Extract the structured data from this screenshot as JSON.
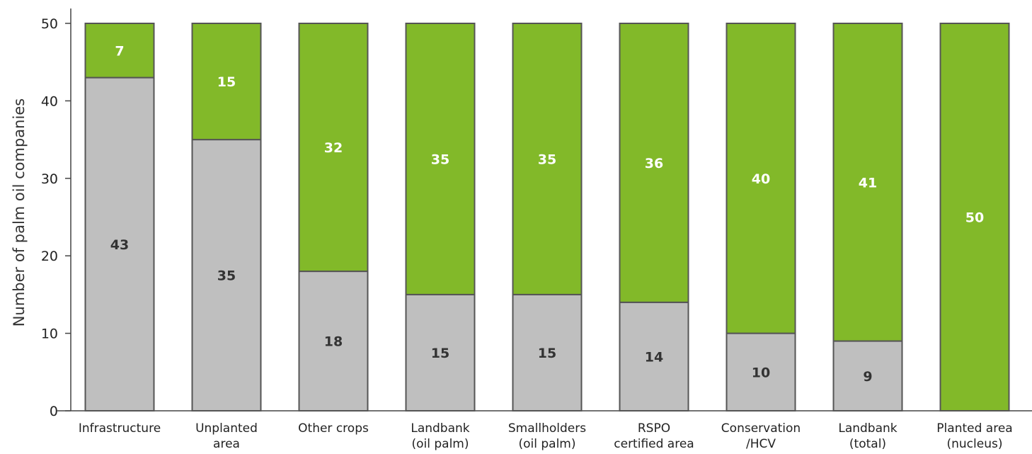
{
  "chart_data": {
    "type": "bar",
    "stacked": true,
    "title": "",
    "xlabel": "",
    "ylabel": "Number of palm oil companies",
    "ylim": [
      0,
      50
    ],
    "yticks": [
      0,
      10,
      20,
      30,
      40,
      50
    ],
    "categories": [
      [
        "Infrastructure"
      ],
      [
        "Unplanted",
        "area"
      ],
      [
        "Other crops"
      ],
      [
        "Landbank",
        "(oil palm)"
      ],
      [
        "Smallholders",
        "(oil palm)"
      ],
      [
        "RSPO",
        "certified area"
      ],
      [
        "Conservation",
        "/HCV"
      ],
      [
        "Landbank",
        "(total)"
      ],
      [
        "Planted area",
        "(nucleus)"
      ]
    ],
    "series": [
      {
        "color": "#bfbfbf",
        "label_color": "#333333",
        "values": [
          43,
          35,
          18,
          15,
          15,
          14,
          10,
          9,
          0
        ]
      },
      {
        "color": "#82b929",
        "label_color": "#ffffff",
        "values": [
          7,
          15,
          32,
          35,
          35,
          36,
          40,
          41,
          50
        ]
      }
    ],
    "grid": false,
    "legend": "none"
  }
}
